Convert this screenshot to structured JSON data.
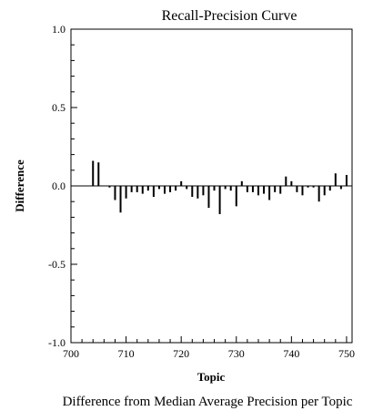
{
  "chart_data": {
    "type": "bar",
    "title": "Recall-Precision Curve",
    "xlabel": "Topic",
    "ylabel": "Difference",
    "caption": "Difference from Median Average Precision per Topic",
    "xlim": [
      700,
      751
    ],
    "ylim": [
      -1.0,
      1.0
    ],
    "grid": false,
    "x_ticks": [
      700,
      710,
      720,
      730,
      740,
      750
    ],
    "y_ticks": [
      -1.0,
      -0.5,
      0.0,
      0.5,
      1.0
    ],
    "y_tick_labels": [
      "-1.0",
      "-0.5",
      "0.0",
      "0.5",
      "1.0"
    ],
    "x": [
      701,
      702,
      703,
      704,
      705,
      706,
      707,
      708,
      709,
      710,
      711,
      712,
      713,
      714,
      715,
      716,
      717,
      718,
      719,
      720,
      721,
      722,
      723,
      724,
      725,
      726,
      727,
      728,
      729,
      730,
      731,
      732,
      733,
      734,
      735,
      736,
      737,
      738,
      739,
      740,
      741,
      742,
      743,
      744,
      745,
      746,
      747,
      748,
      749,
      750
    ],
    "values": [
      0.0,
      0.0,
      0.0,
      0.16,
      0.15,
      0.0,
      -0.01,
      -0.09,
      -0.17,
      -0.08,
      -0.04,
      -0.04,
      -0.05,
      -0.03,
      -0.07,
      -0.02,
      -0.05,
      -0.04,
      -0.03,
      0.03,
      -0.02,
      -0.07,
      -0.08,
      -0.06,
      -0.14,
      -0.03,
      -0.18,
      -0.02,
      -0.03,
      -0.13,
      0.03,
      -0.04,
      -0.04,
      -0.06,
      -0.05,
      -0.09,
      -0.04,
      -0.05,
      0.06,
      0.03,
      -0.04,
      -0.06,
      -0.01,
      -0.01,
      -0.1,
      -0.06,
      -0.03,
      0.08,
      -0.02,
      0.07
    ]
  }
}
